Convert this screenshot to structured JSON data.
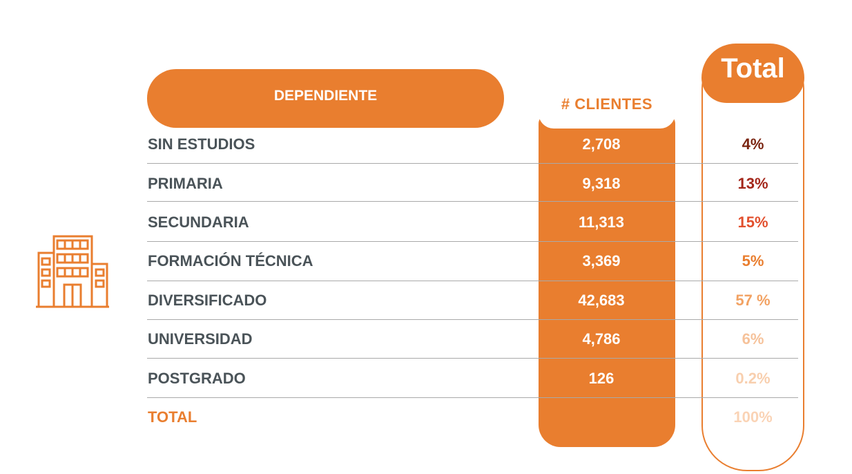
{
  "header": {
    "category_label": "DEPENDIENTE",
    "clients_label": "# CLIENTES",
    "total_label": "Total"
  },
  "icon": "office-building-icon",
  "colors": {
    "accent": "#E97E2F",
    "label_text": "#4A5358"
  },
  "rows": [
    {
      "label": "SIN ESTUDIOS",
      "clients": "2,708",
      "pct": "4%",
      "pct_color": "#7A2410"
    },
    {
      "label": "PRIMARIA",
      "clients": "9,318",
      "pct": "13%",
      "pct_color": "#A3261A"
    },
    {
      "label": "SECUNDARIA",
      "clients": "11,313",
      "pct": "15%",
      "pct_color": "#E2502E"
    },
    {
      "label": "FORMACIÓN TÉCNICA",
      "clients": "3,369",
      "pct": "5%",
      "pct_color": "#E97E2F"
    },
    {
      "label": "DIVERSIFICADO",
      "clients": "42,683",
      "pct": "57 %",
      "pct_color": "#F2A263"
    },
    {
      "label": "UNIVERSIDAD",
      "clients": "4,786",
      "pct": "6%",
      "pct_color": "#F6C29A"
    },
    {
      "label": "POSTGRADO",
      "clients": "126",
      "pct": "0.2%",
      "pct_color": "#F8CFAE"
    },
    {
      "label": "TOTAL",
      "clients": "",
      "pct": "100%",
      "pct_color": "#FAD3B5"
    }
  ]
}
